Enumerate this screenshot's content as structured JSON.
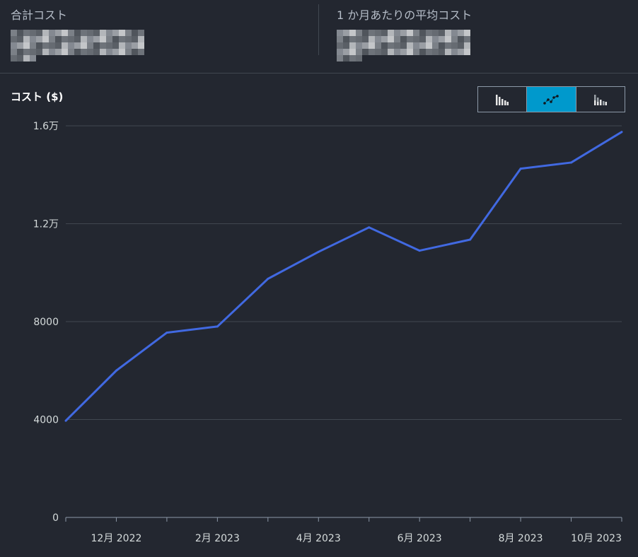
{
  "summary": {
    "total_cost_label": "合計コスト",
    "avg_cost_label": "1 か月あたりの平均コスト"
  },
  "view_toggle": {
    "options": [
      "bar-chart-icon",
      "line-chart-icon",
      "stacked-bar-chart-icon"
    ],
    "selected": 1,
    "active_color": "#0099cc"
  },
  "chart_data": {
    "type": "line",
    "ylabel": "コスト ($)",
    "ylim": [
      0,
      16000
    ],
    "y_ticks": [
      0,
      4000,
      8000,
      12000,
      16000
    ],
    "y_tick_labels": [
      "0",
      "4000",
      "8000",
      "1.2万",
      "1.6万"
    ],
    "x_tick_labels": [
      "12月 2022",
      "2月 2023",
      "4月 2023",
      "6月 2023",
      "8月 2023",
      "10月 2023"
    ],
    "x_tick_months": [
      1,
      3,
      5,
      7,
      9,
      11
    ],
    "grid": true,
    "series": [
      {
        "color": "#4169e1",
        "months": [
          0,
          1,
          2,
          3,
          4,
          5,
          6,
          7,
          8,
          9,
          10,
          11
        ],
        "values": [
          3950,
          6000,
          7550,
          7800,
          9750,
          10850,
          11850,
          10900,
          11350,
          14250,
          14500,
          15750
        ]
      }
    ]
  }
}
